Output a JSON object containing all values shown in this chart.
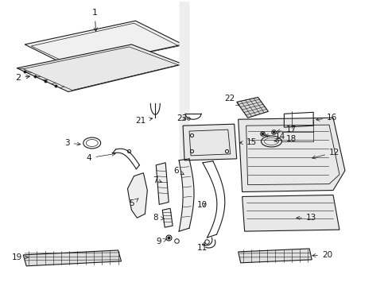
{
  "bg_color": "#ffffff",
  "line_color": "#1a1a1a",
  "label_color": "#000000",
  "font_size": 7.5,
  "fig_width": 4.89,
  "fig_height": 3.6,
  "dpi": 100
}
